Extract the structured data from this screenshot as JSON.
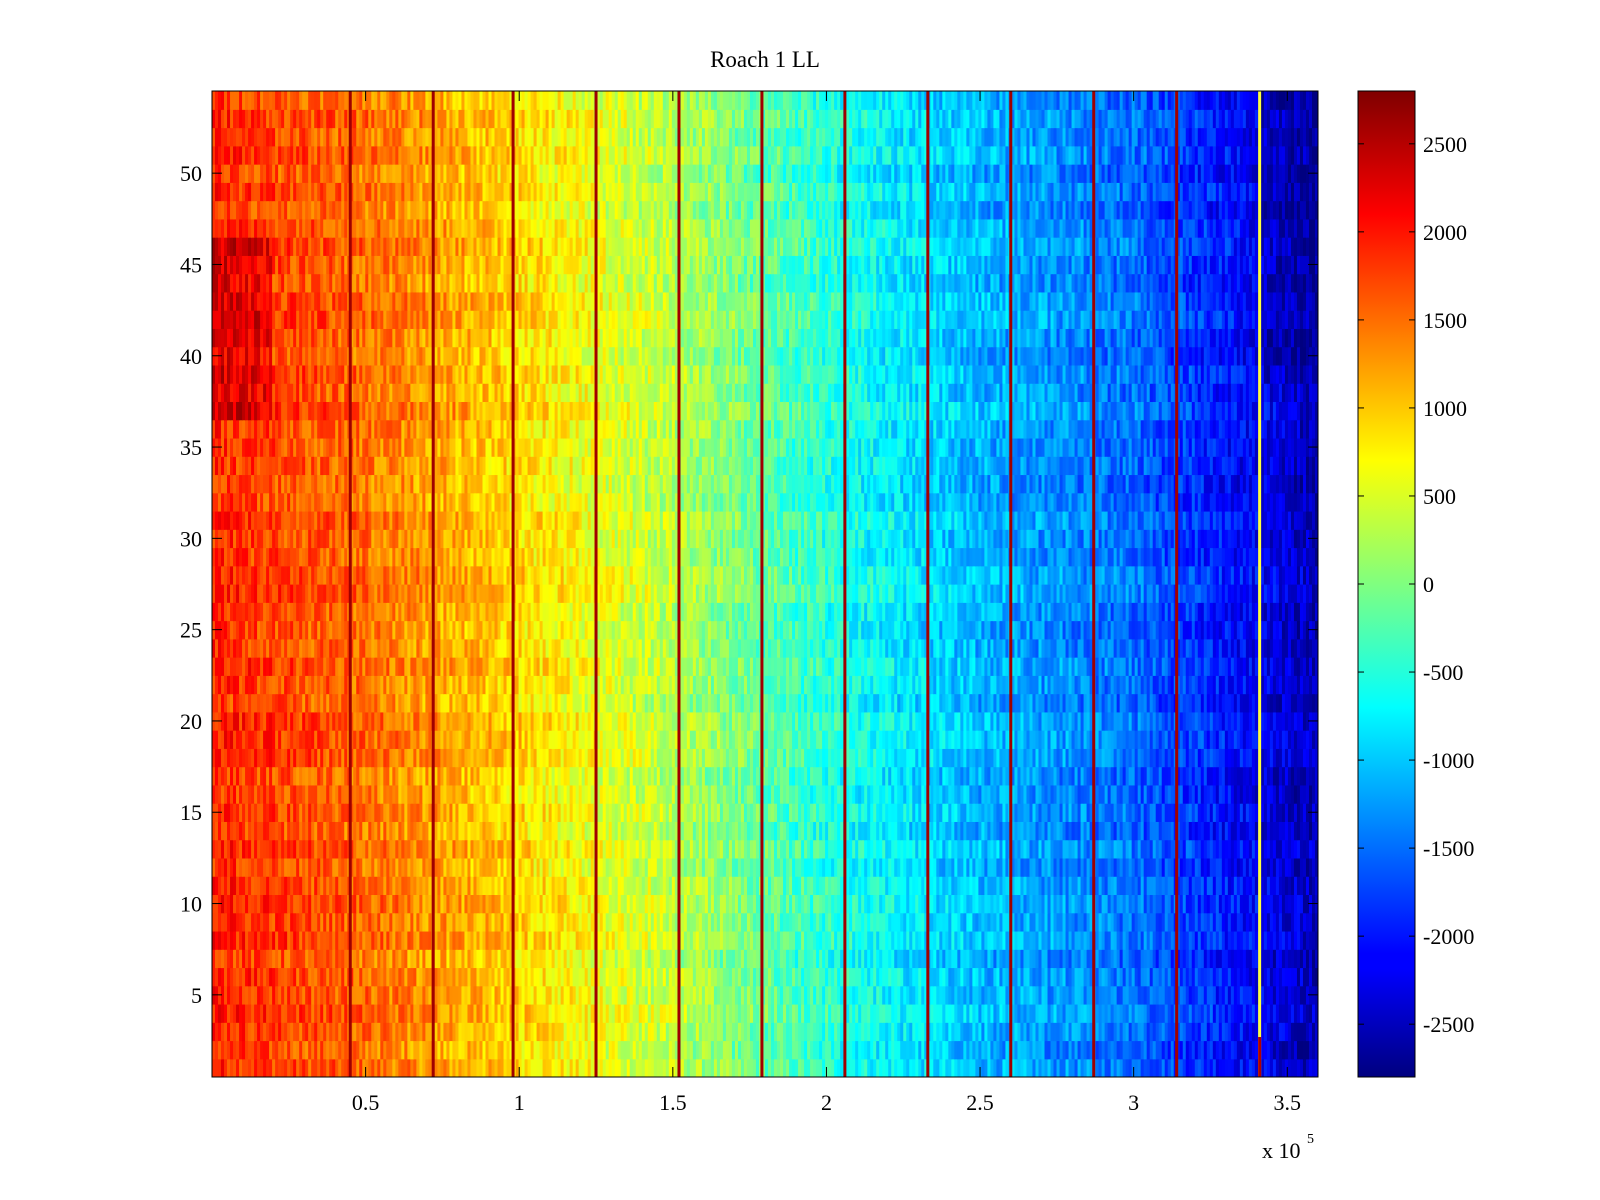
{
  "chart_data": {
    "type": "heatmap",
    "title": "Roach 1 LL",
    "xlabel": "",
    "ylabel": "",
    "x_multiplier_label": "x 10",
    "x_multiplier_exponent": "5",
    "xlim": [
      0,
      3.6
    ],
    "ylim": [
      0.5,
      54.5
    ],
    "x_ticks": [
      0.5,
      1,
      1.5,
      2,
      2.5,
      3,
      3.5
    ],
    "x_tick_labels": [
      "0.5",
      "1",
      "1.5",
      "2",
      "2.5",
      "3",
      "3.5"
    ],
    "y_ticks": [
      5,
      10,
      15,
      20,
      25,
      30,
      35,
      40,
      45,
      50
    ],
    "y_tick_labels": [
      "5",
      "10",
      "15",
      "20",
      "25",
      "30",
      "35",
      "40",
      "45",
      "50"
    ],
    "rows": 54,
    "colorbar": {
      "colormap": "jet",
      "clim": [
        -2800,
        2800
      ],
      "ticks": [
        2500,
        2000,
        1500,
        1000,
        500,
        0,
        -500,
        -1000,
        -1500,
        -2000,
        -2500
      ],
      "tick_labels": [
        "2500",
        "2000",
        "1500",
        "1000",
        "500",
        "0",
        "-500",
        "-1000",
        "-1500",
        "-2000",
        "-2500"
      ]
    },
    "trend": {
      "description": "values decrease roughly linearly from left to right",
      "x_samples": [
        0.0,
        0.5,
        1.0,
        1.5,
        2.0,
        2.5,
        3.0,
        3.3,
        3.6
      ],
      "value_samples": [
        1900,
        1500,
        900,
        300,
        -500,
        -1100,
        -1500,
        -2000,
        -2500
      ]
    },
    "hot_stripes_x": [
      0.45,
      0.72,
      0.98,
      1.25,
      1.52,
      1.79,
      2.06,
      2.33,
      2.6,
      2.87,
      3.14,
      3.41
    ],
    "grid": false
  }
}
